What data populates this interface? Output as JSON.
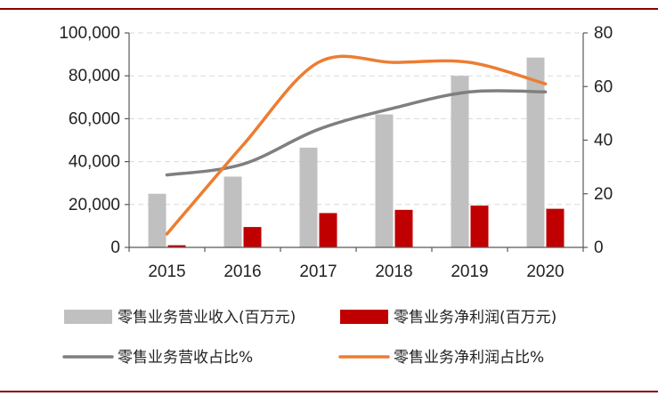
{
  "chart_data": {
    "type": "bar",
    "categories": [
      "2015",
      "2016",
      "2017",
      "2018",
      "2019",
      "2020"
    ],
    "bar_series": [
      {
        "name": "零售业务营业收入(百万元)",
        "color": "#c0c0c0",
        "axis": "left",
        "values": [
          25000,
          33000,
          46500,
          62000,
          80000,
          88500
        ]
      },
      {
        "name": "零售业务净利润(百万元)",
        "color": "#c00000",
        "axis": "left",
        "values": [
          1000,
          9500,
          16000,
          17500,
          19500,
          18000
        ]
      }
    ],
    "line_series": [
      {
        "name": "零售业务营收占比%",
        "color": "#7f7f7f",
        "axis": "right",
        "values": [
          27,
          31,
          44,
          52,
          58,
          58
        ]
      },
      {
        "name": "零售业务净利润占比%",
        "color": "#ed7d31",
        "axis": "right",
        "values": [
          5,
          38,
          69,
          69,
          69,
          61
        ]
      }
    ],
    "left_axis": {
      "ylim": [
        0,
        100000
      ],
      "ticks": [
        "0",
        "20,000",
        "40,000",
        "60,000",
        "80,000",
        "100,000"
      ]
    },
    "right_axis": {
      "ylim": [
        0,
        80
      ],
      "ticks": [
        "0",
        "20",
        "40",
        "60",
        "80"
      ]
    },
    "grid": true,
    "legend_position": "bottom"
  }
}
